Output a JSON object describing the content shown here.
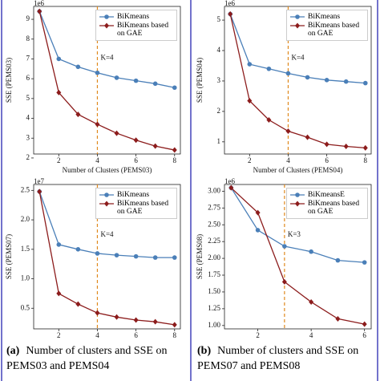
{
  "chart_data": [
    {
      "type": "line",
      "scale_label": "1e6",
      "xlabel": "Number of Clusters (PEMS03)",
      "ylabel": "SSE (PEMS03)",
      "x": [
        1,
        2,
        3,
        4,
        5,
        6,
        7,
        8
      ],
      "xlim": [
        0.7,
        8.3
      ],
      "xticks": [
        2,
        4,
        6,
        8
      ],
      "ylim": [
        2.2,
        9.65
      ],
      "yticks": [
        2,
        3,
        4,
        5,
        6,
        7,
        8,
        9
      ],
      "annotation": {
        "text": "K=4",
        "x": 4,
        "color": "#e0891d"
      },
      "series": [
        {
          "name": "BiKmeans",
          "color": "#4a7fb8",
          "marker": "circle",
          "values": [
            9.4,
            7.0,
            6.6,
            6.3,
            6.05,
            5.9,
            5.75,
            5.55
          ]
        },
        {
          "name": "BiKmeans based on GAE",
          "color": "#8c1c1c",
          "marker": "diamond",
          "values": [
            9.4,
            5.3,
            4.2,
            3.7,
            3.25,
            2.9,
            2.6,
            2.4
          ]
        }
      ]
    },
    {
      "type": "line",
      "scale_label": "1e6",
      "xlabel": "Number of Clusters (PEMS04)",
      "ylabel": "SSE (PEMS04)",
      "x": [
        1,
        2,
        3,
        4,
        5,
        6,
        7,
        8
      ],
      "xlim": [
        0.7,
        8.3
      ],
      "xticks": [
        2,
        4,
        6,
        8
      ],
      "ylim": [
        0.6,
        5.45
      ],
      "yticks": [
        1,
        2,
        3,
        4,
        5
      ],
      "annotation": {
        "text": "K=4",
        "x": 4,
        "color": "#e0891d"
      },
      "series": [
        {
          "name": "BiKmeans",
          "color": "#4a7fb8",
          "marker": "circle",
          "values": [
            5.2,
            3.55,
            3.4,
            3.25,
            3.12,
            3.03,
            2.98,
            2.93
          ]
        },
        {
          "name": "BiKmeans based on GAE",
          "color": "#8c1c1c",
          "marker": "diamond",
          "values": [
            5.2,
            2.35,
            1.72,
            1.35,
            1.15,
            0.92,
            0.85,
            0.8
          ]
        }
      ]
    },
    {
      "type": "line",
      "scale_label": "1e7",
      "ylabel": "SSE (PEMS07)",
      "x": [
        1,
        2,
        3,
        4,
        5,
        6,
        7,
        8
      ],
      "xlim": [
        0.7,
        8.3
      ],
      "xticks": [
        2,
        4,
        6,
        8
      ],
      "ylim": [
        0.15,
        2.6
      ],
      "yticks": [
        0.5,
        {
          "value": 1,
          "label": "1.0"
        },
        1.5,
        {
          "value": 2,
          "label": "2.0"
        },
        2.5
      ],
      "annotation": {
        "text": "K=4",
        "x": 4,
        "color": "#e0891d"
      },
      "series": [
        {
          "name": "BiKmeans",
          "color": "#4a7fb8",
          "marker": "circle",
          "values": [
            2.48,
            1.58,
            1.5,
            1.43,
            1.4,
            1.38,
            1.36,
            1.36
          ]
        },
        {
          "name": "BiKmeans based on GAE",
          "color": "#8c1c1c",
          "marker": "diamond",
          "values": [
            2.48,
            0.75,
            0.57,
            0.42,
            0.35,
            0.3,
            0.27,
            0.22
          ]
        }
      ]
    },
    {
      "type": "line",
      "scale_label": "1e6",
      "ylabel": "SSE (PEMS08)",
      "x": [
        1,
        2,
        3,
        4,
        5,
        6
      ],
      "xlim": [
        0.75,
        6.25
      ],
      "xticks": [
        2,
        4,
        6
      ],
      "ylim": [
        0.95,
        3.1
      ],
      "yticks": [
        {
          "value": 1,
          "label": "1.00"
        },
        {
          "value": 1.25,
          "label": "1.25"
        },
        {
          "value": 1.5,
          "label": "1.50"
        },
        {
          "value": 1.75,
          "label": "1.75"
        },
        {
          "value": 2,
          "label": "2.00"
        },
        {
          "value": 2.25,
          "label": "2.25"
        },
        {
          "value": 2.5,
          "label": "2.50"
        },
        {
          "value": 2.75,
          "label": "2.75"
        },
        {
          "value": 3,
          "label": "3.00"
        }
      ],
      "annotation": {
        "text": "K=3",
        "x": 3,
        "color": "#e0891d"
      },
      "series": [
        {
          "name": "BiKmeansE",
          "color": "#4a7fb8",
          "marker": "circle",
          "values": [
            3.05,
            2.42,
            2.18,
            2.1,
            1.97,
            1.94
          ]
        },
        {
          "name": "BiKmeans based on GAE",
          "color": "#8c1c1c",
          "marker": "diamond",
          "values": [
            3.05,
            2.68,
            1.65,
            1.35,
            1.1,
            1.02
          ]
        }
      ]
    }
  ],
  "captions": [
    {
      "label": "(a)",
      "text": "Number of clusters and SSE on PEMS03 and PEMS04"
    },
    {
      "label": "(b)",
      "text": "Number of clusters and SSE on PEMS07 and PEMS08"
    }
  ]
}
